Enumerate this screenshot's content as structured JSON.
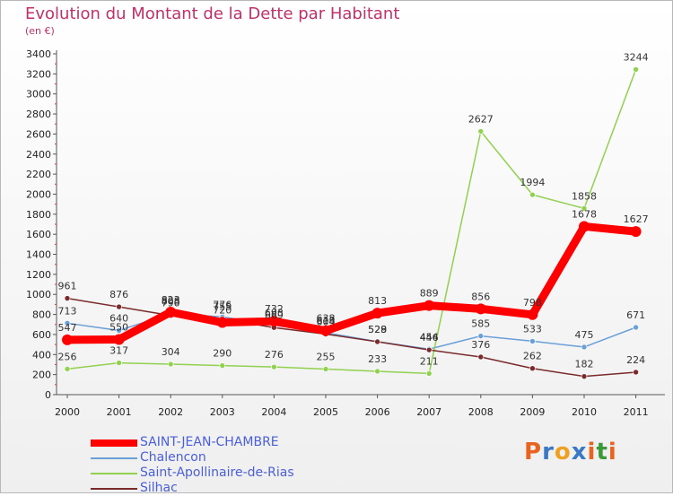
{
  "header": {
    "title": "Evolution du Montant de la Dette par Habitant",
    "subtitle": "(en €)"
  },
  "logo": {
    "text": "Proxiti",
    "colors": [
      "#e8641e",
      "#3a78c4",
      "#f0a020",
      "#3a78c4",
      "#e8641e",
      "#3a9a3a",
      "#e8641e"
    ]
  },
  "chart_data": {
    "type": "line",
    "title": "Evolution du Montant de la Dette par Habitant",
    "subtitle": "(en €)",
    "xlabel": "",
    "ylabel": "",
    "x": [
      "2000",
      "2001",
      "2002",
      "2003",
      "2004",
      "2005",
      "2006",
      "2007",
      "2008",
      "2009",
      "2010",
      "2011"
    ],
    "ylim": [
      0,
      3400
    ],
    "yticks": [
      0,
      200,
      400,
      600,
      800,
      1000,
      1200,
      1400,
      1600,
      1800,
      2000,
      2200,
      2400,
      2600,
      2800,
      3000,
      3200,
      3400
    ],
    "grid": false,
    "legend_position": "bottom-left",
    "series": [
      {
        "name": "SAINT-JEAN-CHAMBRE",
        "color": "#ff0000",
        "values": [
          547,
          550,
          823,
          720,
          732,
          638,
          813,
          889,
          856,
          798,
          1678,
          1627
        ]
      },
      {
        "name": "Chalencon",
        "color": "#6aa0d8",
        "values": [
          713,
          640,
          808,
          776,
          693,
          618,
          529,
          454,
          585,
          533,
          475,
          671
        ]
      },
      {
        "name": "Saint-Apollinaire-de-Rias",
        "color": "#92d050",
        "values": [
          256,
          317,
          304,
          290,
          276,
          255,
          233,
          211,
          2627,
          1994,
          1858,
          3244
        ]
      },
      {
        "name": "Silhac",
        "color": "#7a2a2a",
        "values": [
          961,
          876,
          790,
          755,
          669,
          604,
          528,
          446,
          376,
          262,
          182,
          224
        ]
      }
    ]
  }
}
